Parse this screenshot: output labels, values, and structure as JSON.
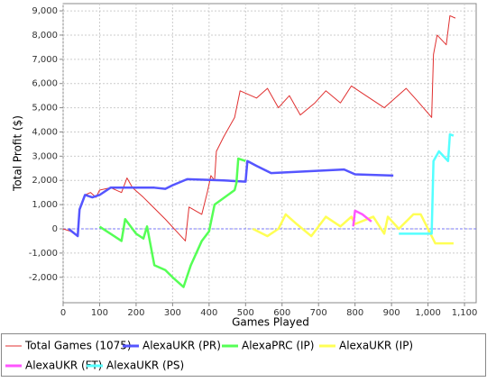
{
  "chart_data": {
    "type": "line",
    "xlabel": "Games Played",
    "ylabel": "Total Profit ($)",
    "xlim": [
      0,
      1132
    ],
    "ylim": [
      -3050,
      9300
    ],
    "xticks": [
      0,
      100,
      200,
      300,
      400,
      500,
      600,
      700,
      800,
      900,
      {
        "value": 1000,
        "label": "1,000"
      },
      {
        "value": 1100,
        "label": "1,100"
      }
    ],
    "yticks": [
      {
        "value": -2000,
        "label": "-2,000"
      },
      {
        "value": -1000,
        "label": "-1,000"
      },
      0,
      {
        "value": 1000,
        "label": "1,000"
      },
      {
        "value": 2000,
        "label": "2,000"
      },
      {
        "value": 3000,
        "label": "3,000"
      },
      {
        "value": 4000,
        "label": "4,000"
      },
      {
        "value": 5000,
        "label": "5,000"
      },
      {
        "value": 6000,
        "label": "6,000"
      },
      {
        "value": 7000,
        "label": "7,000"
      },
      {
        "value": 8000,
        "label": "8,000"
      },
      {
        "value": 9000,
        "label": "9,000"
      }
    ],
    "grid": true,
    "legend_position": "bottom",
    "series": [
      {
        "name": "Total Games (1075)",
        "color": "#e03030",
        "x": [
          0,
          20,
          40,
          45,
          60,
          75,
          90,
          100,
          130,
          160,
          175,
          190,
          220,
          240,
          280,
          335,
          345,
          380,
          395,
          405,
          415,
          420,
          440,
          470,
          485,
          530,
          560,
          590,
          620,
          650,
          690,
          720,
          760,
          790,
          830,
          880,
          940,
          970,
          1010,
          1015,
          1025,
          1050,
          1060,
          1075
        ],
        "values": [
          0,
          -100,
          -300,
          800,
          1400,
          1500,
          1300,
          1600,
          1700,
          1500,
          2100,
          1700,
          1300,
          1000,
          400,
          -500,
          900,
          600,
          1500,
          2200,
          2000,
          3200,
          3800,
          4600,
          5700,
          5400,
          5800,
          5000,
          5500,
          4700,
          5200,
          5700,
          5200,
          5900,
          5500,
          5000,
          5800,
          5300,
          4600,
          7200,
          8000,
          7600,
          8800,
          8700
        ]
      },
      {
        "name": "AlexaUKR (PR)",
        "color": "#5555ff",
        "x": [
          15,
          40,
          45,
          60,
          80,
          100,
          130,
          250,
          280,
          300,
          340,
          440,
          500,
          505,
          530,
          570,
          770,
          800,
          905
        ],
        "values": [
          0,
          -300,
          800,
          1400,
          1300,
          1400,
          1700,
          1700,
          1650,
          1800,
          2050,
          2000,
          1950,
          2800,
          2600,
          2300,
          2450,
          2250,
          2200
        ]
      },
      {
        "name": "AlexaPRC (IP)",
        "color": "#55ff55",
        "x": [
          100,
          160,
          170,
          200,
          220,
          230,
          250,
          280,
          300,
          330,
          350,
          380,
          400,
          415,
          470,
          475,
          480,
          500
        ],
        "values": [
          90,
          -500,
          400,
          -200,
          -400,
          100,
          -1500,
          -1700,
          -2000,
          -2400,
          -1500,
          -500,
          -100,
          1000,
          1600,
          1900,
          2900,
          2800
        ]
      },
      {
        "name": "AlexaUKR (IP)",
        "color": "#ffff55",
        "x": [
          520,
          560,
          590,
          610,
          640,
          680,
          720,
          760,
          790,
          800,
          850,
          880,
          890,
          920,
          960,
          980,
          1020,
          1070
        ],
        "values": [
          0,
          -300,
          0,
          600,
          200,
          -300,
          500,
          100,
          500,
          200,
          500,
          -200,
          500,
          0,
          600,
          600,
          -600,
          -600
        ]
      },
      {
        "name": "AlexaUKR (FT)",
        "color": "#ff55ff",
        "x": [
          795,
          800,
          820,
          845
        ],
        "values": [
          100,
          750,
          600,
          300
        ]
      },
      {
        "name": "AlexaUKR (PS)",
        "color": "#55ffff",
        "x": [
          920,
          1010,
          1015,
          1030,
          1055,
          1060,
          1070
        ],
        "values": [
          -200,
          -200,
          2800,
          3200,
          2800,
          3900,
          3850
        ]
      }
    ]
  }
}
